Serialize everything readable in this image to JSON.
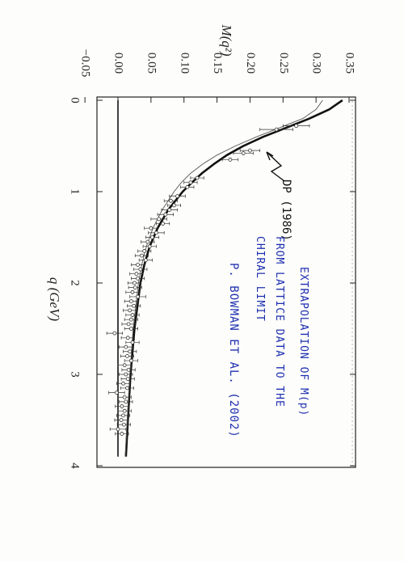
{
  "chart_data": {
    "type": "line",
    "orientation": "rotated-90-clockwise",
    "xlabel": "q (GeV)",
    "ylabel": "M(q²)",
    "xlim": [
      0,
      4
    ],
    "ylim": [
      -0.05,
      0.35
    ],
    "x_ticks": [
      "0",
      "1",
      "2",
      "3",
      "4"
    ],
    "y_ticks": [
      "−0.05",
      "0.00",
      "0.05",
      "0.10",
      "0.15",
      "0.20",
      "0.25",
      "0.30",
      "0.35"
    ],
    "series": [
      {
        "kind": "thick-curve",
        "x": [
          0.0,
          0.1,
          0.2,
          0.3,
          0.4,
          0.5,
          0.6,
          0.7,
          0.8,
          0.9,
          1.0,
          1.2,
          1.4,
          1.6,
          1.8,
          2.0,
          2.5,
          3.0,
          3.5,
          3.9
        ],
        "y": [
          0.34,
          0.32,
          0.29,
          0.255,
          0.22,
          0.19,
          0.165,
          0.145,
          0.127,
          0.112,
          0.098,
          0.076,
          0.06,
          0.048,
          0.04,
          0.034,
          0.025,
          0.019,
          0.015,
          0.012
        ]
      },
      {
        "kind": "thin-fit-curve",
        "x": [
          0.0,
          0.1,
          0.2,
          0.3,
          0.4,
          0.5,
          0.6,
          0.7,
          0.8,
          0.9,
          1.0,
          1.2,
          1.4,
          1.6,
          1.8,
          2.0,
          2.5,
          3.0,
          3.5,
          3.9
        ],
        "y": [
          0.31,
          0.3,
          0.28,
          0.245,
          0.21,
          0.178,
          0.15,
          0.128,
          0.11,
          0.096,
          0.085,
          0.067,
          0.053,
          0.043,
          0.036,
          0.031,
          0.023,
          0.018,
          0.014,
          0.011
        ]
      },
      {
        "kind": "zero-line",
        "x": [
          0,
          3.9
        ],
        "y": [
          0.0,
          0.0
        ]
      },
      {
        "kind": "lattice-points",
        "x": [
          0.28,
          0.32,
          0.55,
          0.58,
          0.65,
          0.85,
          0.9,
          0.95,
          1.05,
          1.1,
          1.15,
          1.2,
          1.25,
          1.3,
          1.35,
          1.4,
          1.45,
          1.5,
          1.55,
          1.6,
          1.65,
          1.7,
          1.75,
          1.8,
          1.85,
          1.9,
          1.95,
          2.0,
          2.05,
          2.1,
          2.15,
          2.2,
          2.25,
          2.3,
          2.35,
          2.4,
          2.45,
          2.5,
          2.55,
          2.6,
          2.65,
          2.7,
          2.75,
          2.8,
          2.85,
          2.9,
          2.95,
          3.0,
          3.05,
          3.1,
          3.15,
          3.2,
          3.25,
          3.3,
          3.35,
          3.4,
          3.45,
          3.5,
          3.55,
          3.6,
          3.65
        ],
        "y": [
          0.27,
          0.24,
          0.2,
          0.19,
          0.17,
          0.12,
          0.11,
          0.105,
          0.09,
          0.08,
          0.085,
          0.078,
          0.072,
          0.062,
          0.068,
          0.05,
          0.058,
          0.052,
          0.045,
          0.048,
          0.04,
          0.036,
          0.042,
          0.03,
          0.034,
          0.028,
          0.03,
          0.025,
          0.026,
          0.022,
          0.03,
          0.02,
          0.024,
          0.018,
          0.022,
          0.02,
          0.016,
          0.02,
          -0.005,
          0.015,
          0.022,
          0.012,
          0.018,
          0.014,
          0.02,
          0.01,
          0.016,
          0.012,
          0.015,
          0.008,
          0.014,
          -0.002,
          0.01,
          0.012,
          0.006,
          0.01,
          0.008,
          0.005,
          0.009,
          0.0,
          0.006
        ],
        "err": [
          0.02,
          0.025,
          0.015,
          0.015,
          0.012,
          0.01,
          0.01,
          0.01,
          0.012,
          0.01,
          0.01,
          0.012,
          0.012,
          0.012,
          0.01,
          0.01,
          0.012,
          0.01,
          0.01,
          0.01,
          0.01,
          0.01,
          0.01,
          0.01,
          0.01,
          0.01,
          0.01,
          0.01,
          0.01,
          0.01,
          0.012,
          0.01,
          0.01,
          0.01,
          0.01,
          0.01,
          0.01,
          0.01,
          0.012,
          0.01,
          0.01,
          0.01,
          0.01,
          0.01,
          0.01,
          0.01,
          0.01,
          0.01,
          0.01,
          0.01,
          0.01,
          0.012,
          0.01,
          0.01,
          0.01,
          0.01,
          0.01,
          0.01,
          0.01,
          0.012,
          0.01
        ]
      }
    ],
    "annotations": {
      "arrow_label": "DP (1986)",
      "note_lines": [
        "EXTRAPOLATION OF M(p)",
        "FROM LATTICE DATA TO THE",
        "CHIRAL LIMIT",
        "P. BOWMAN ET AL. (2002)"
      ]
    },
    "colors": {
      "thick": "#111111",
      "thin": "#555555",
      "points": "#333333",
      "note": "#1d2fb0"
    }
  }
}
